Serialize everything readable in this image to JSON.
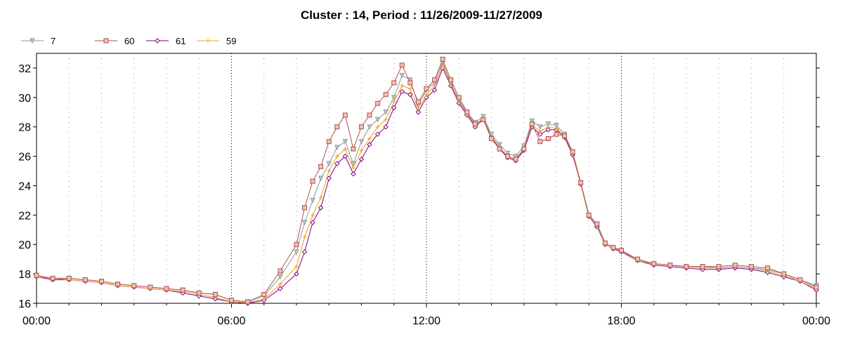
{
  "chart_data": {
    "type": "line",
    "title": "Cluster : 14, Period : 11/26/2009-11/27/2009",
    "xlabel": "",
    "ylabel": "",
    "x_tick_labels": [
      "00:00",
      "06:00",
      "12:00",
      "18:00",
      "00:00"
    ],
    "y_ticks": [
      16,
      18,
      20,
      22,
      24,
      26,
      28,
      30,
      32
    ],
    "ylim": [
      16,
      33
    ],
    "xlim_hours": [
      0,
      24
    ],
    "grid": "vertical dotted",
    "legend_position": "top-left",
    "x_hours": [
      0,
      0.5,
      1,
      1.5,
      2,
      2.5,
      3,
      3.5,
      4,
      4.5,
      5,
      5.5,
      6,
      6.5,
      7,
      7.5,
      8,
      8.25,
      8.5,
      8.75,
      9,
      9.25,
      9.5,
      9.75,
      10,
      10.25,
      10.5,
      10.75,
      11,
      11.25,
      11.5,
      11.75,
      12,
      12.25,
      12.5,
      12.75,
      13,
      13.25,
      13.5,
      13.75,
      14,
      14.25,
      14.5,
      14.75,
      15,
      15.25,
      15.5,
      15.75,
      16,
      16.25,
      16.5,
      16.75,
      17,
      17.25,
      17.5,
      17.75,
      18,
      18.5,
      19,
      19.5,
      20,
      20.5,
      21,
      21.5,
      22,
      22.5,
      23,
      23.5,
      24
    ],
    "series": [
      {
        "name": "7",
        "color": "#8a9a9a",
        "marker": "triangle-down",
        "values": [
          17.9,
          17.7,
          17.7,
          17.6,
          17.5,
          17.3,
          17.2,
          17.1,
          17.0,
          16.9,
          16.7,
          16.6,
          16.2,
          16.1,
          16.5,
          17.8,
          19.5,
          21.5,
          23.0,
          24.5,
          25.5,
          26.6,
          27.0,
          25.5,
          27.0,
          28.0,
          28.5,
          29.0,
          30.0,
          31.5,
          31.2,
          29.5,
          30.5,
          31.0,
          32.4,
          31.0,
          29.8,
          29.0,
          28.3,
          28.7,
          27.5,
          26.8,
          26.2,
          26.0,
          26.7,
          28.4,
          28.0,
          28.2,
          28.1,
          27.5,
          26.3,
          24.2,
          22.0,
          21.2,
          20.1,
          19.8,
          19.6,
          19.0,
          18.7,
          18.6,
          18.5,
          18.5,
          18.4,
          18.5,
          18.4,
          18.3,
          18.0,
          17.6,
          17.2
        ]
      },
      {
        "name": "60",
        "color": "#b05050",
        "marker": "square",
        "values": [
          17.9,
          17.7,
          17.7,
          17.6,
          17.5,
          17.3,
          17.2,
          17.1,
          17.0,
          16.9,
          16.7,
          16.6,
          16.2,
          16.1,
          16.6,
          18.2,
          20.0,
          22.5,
          24.3,
          25.3,
          27.0,
          28.0,
          28.8,
          26.5,
          28.0,
          28.8,
          29.6,
          30.2,
          31.0,
          32.2,
          31.0,
          29.7,
          30.6,
          31.2,
          32.6,
          31.2,
          30.0,
          29.0,
          28.2,
          28.5,
          27.2,
          26.5,
          26.0,
          25.8,
          26.5,
          28.2,
          27.0,
          27.2,
          27.5,
          27.4,
          26.3,
          24.2,
          22.0,
          21.4,
          20.1,
          19.8,
          19.6,
          19.0,
          18.7,
          18.6,
          18.5,
          18.5,
          18.5,
          18.6,
          18.5,
          18.4,
          18.0,
          17.6,
          17.1
        ]
      },
      {
        "name": "61",
        "color": "#800080",
        "marker": "diamond",
        "values": [
          17.8,
          17.6,
          17.6,
          17.5,
          17.4,
          17.2,
          17.1,
          17.0,
          16.9,
          16.7,
          16.5,
          16.3,
          16.1,
          16.0,
          16.2,
          17.0,
          18.0,
          19.5,
          21.5,
          22.5,
          24.5,
          25.5,
          26.0,
          24.8,
          25.8,
          26.8,
          27.5,
          28.0,
          29.3,
          30.4,
          30.2,
          29.0,
          30.0,
          30.5,
          32.0,
          30.8,
          29.6,
          28.8,
          28.0,
          28.5,
          27.3,
          26.5,
          25.9,
          25.7,
          26.4,
          28.0,
          27.5,
          27.8,
          27.8,
          27.3,
          26.1,
          24.1,
          21.9,
          21.2,
          20.0,
          19.7,
          19.5,
          18.9,
          18.6,
          18.5,
          18.4,
          18.3,
          18.3,
          18.4,
          18.3,
          18.1,
          17.8,
          17.5,
          16.9
        ]
      },
      {
        "name": "59",
        "color": "#f0a020",
        "marker": "plus",
        "values": [
          17.8,
          17.7,
          17.6,
          17.5,
          17.4,
          17.2,
          17.1,
          17.0,
          16.9,
          16.8,
          16.6,
          16.4,
          16.1,
          16.05,
          16.3,
          17.3,
          18.5,
          20.5,
          22.0,
          23.2,
          25.0,
          26.0,
          26.5,
          25.2,
          26.4,
          27.2,
          28.0,
          28.5,
          29.7,
          30.8,
          30.6,
          29.2,
          30.2,
          30.8,
          32.2,
          30.9,
          29.7,
          28.9,
          28.1,
          28.6,
          27.4,
          26.6,
          26.0,
          25.8,
          26.5,
          28.1,
          27.7,
          28.0,
          27.9,
          27.4,
          26.2,
          24.1,
          21.9,
          21.3,
          20.0,
          19.7,
          19.6,
          18.9,
          18.7,
          18.6,
          18.5,
          18.4,
          18.4,
          18.5,
          18.4,
          18.2,
          17.9,
          17.5,
          17.0
        ]
      }
    ]
  }
}
